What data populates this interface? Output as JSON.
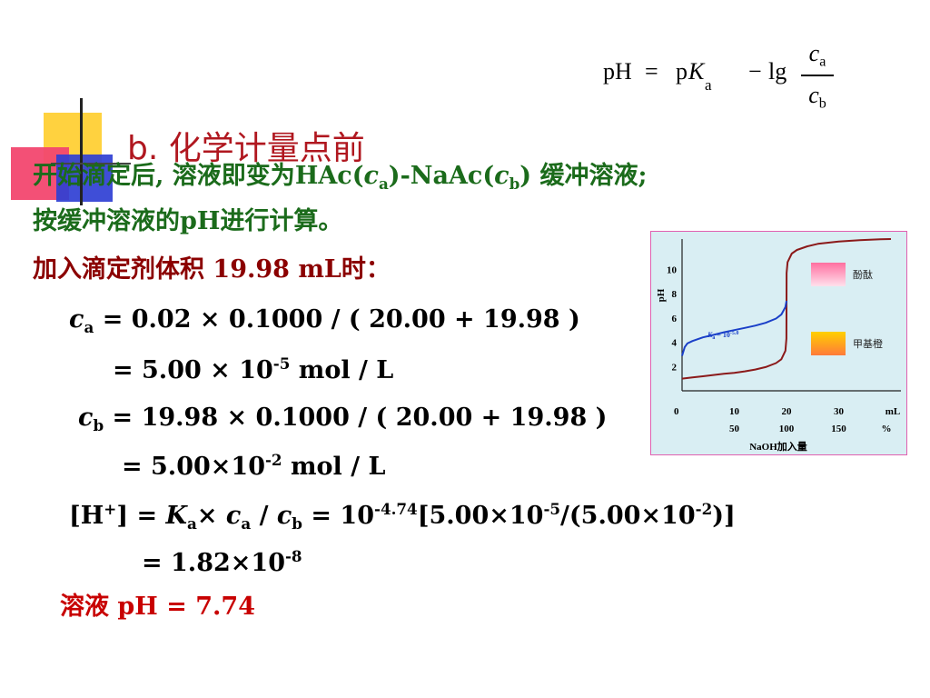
{
  "formula": {
    "lhs": "pH",
    "eq": "=",
    "pK": "p",
    "K": "K",
    "K_sub": "a",
    "minus": "−",
    "lg": "lg",
    "num": "c",
    "num_sub": "a",
    "den": "c",
    "den_sub": "b"
  },
  "title": "b. 化学计量点前",
  "lines": {
    "l1_a": "开始滴定后, 溶液即变为",
    "l1_b": "HAc(",
    "l1_c": "c",
    "l1_d": "a",
    "l1_e": ")-NaAc(",
    "l1_f": "c",
    "l1_g": "b",
    "l1_h": ") ",
    "l1_i": "缓冲溶液;",
    "l2_a": "按缓冲溶液的",
    "l2_b": "pH",
    "l2_c": "进行计算。",
    "l3_a": "加入滴定剂体积 ",
    "l3_b": "19.98 mL",
    "l3_c": "时：",
    "l4_c": "c",
    "l4_sub": "a",
    "l4_rest": " = 0.02 × 0.1000 / ( 20.00 + 19.98 )",
    "l5_a": "= 5.00 × 10",
    "l5_sup": "-5",
    "l5_b": "  mol / L",
    "l6_c": "c",
    "l6_sub": "b",
    "l6_rest": " = 19.98 × 0.1000 / ( 20.00 + 19.98 )",
    "l7_a": "= 5.00×10",
    "l7_sup": "-2",
    "l7_b": " mol / L",
    "l8_a": "[H",
    "l8_plus": "+",
    "l8_b": "] = ",
    "l8_K": "K",
    "l8_Ksub": "a",
    "l8_times": "× ",
    "l8_c1": "c",
    "l8_c1sub": "a",
    "l8_slash": " / ",
    "l8_c2": "c",
    "l8_c2sub": "b",
    "l8_c": " = 10",
    "l8_sup1": "-4.74",
    "l8_d": "[5.00×10",
    "l8_sup2": "-5",
    "l8_e": "/(5.00×10",
    "l8_sup3": "-2",
    "l8_f": ")]",
    "l9_a": "= 1.82×10",
    "l9_sup": "-8",
    "l10_a": "溶液 ",
    "l10_b": "pH = 7.74"
  },
  "chart_data": {
    "type": "line",
    "ylabel": "pH",
    "yticks": [
      "2",
      "4",
      "6",
      "8",
      "10"
    ],
    "xticks_row1": [
      "0",
      "10",
      "20",
      "30",
      "mL"
    ],
    "xticks_row2": [
      "50",
      "100",
      "150",
      "%"
    ],
    "xlabel": "NaOH加入量",
    "ka_label": "K",
    "ka_sub": "a",
    "ka_value": " = 10",
    "ka_sup": "-5.0",
    "legend": [
      {
        "label": "酚酞",
        "color_top": "#ff6fa0",
        "color_bottom": "#ffe0ec"
      },
      {
        "label": "甲基橙",
        "color_top": "#ffd000",
        "color_bottom": "#ff7a3a"
      }
    ],
    "series": [
      {
        "color": "#8b1a1a",
        "x": [
          0,
          2,
          4,
          6,
          8,
          10,
          12,
          14,
          16,
          18,
          19,
          19.8,
          19.98,
          20,
          20.02,
          20.2,
          21,
          22,
          24,
          26,
          28,
          30,
          32,
          34,
          36,
          38,
          40
        ],
        "y": [
          1.0,
          1.1,
          1.2,
          1.3,
          1.4,
          1.48,
          1.6,
          1.75,
          1.95,
          2.28,
          2.6,
          3.3,
          4.3,
          7.0,
          9.7,
          10.6,
          11.3,
          11.6,
          11.9,
          12.1,
          12.2,
          12.3,
          12.35,
          12.4,
          12.45,
          12.48,
          12.5
        ]
      },
      {
        "color": "#1a3fc8",
        "x": [
          0,
          0.5,
          1,
          2,
          4,
          6,
          8,
          10,
          12,
          14,
          16,
          18,
          19,
          19.8,
          20
        ],
        "y": [
          2.88,
          3.6,
          3.9,
          4.1,
          4.4,
          4.6,
          4.82,
          5.0,
          5.18,
          5.37,
          5.6,
          5.95,
          6.28,
          6.9,
          7.4
        ]
      }
    ],
    "xlim": [
      0,
      40
    ],
    "ylim": [
      0,
      12.5
    ]
  }
}
